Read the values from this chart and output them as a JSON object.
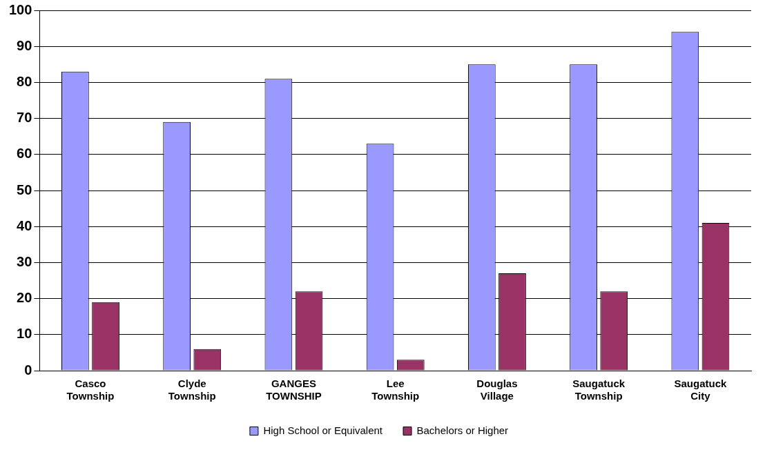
{
  "chart_data": {
    "type": "bar",
    "categories": [
      "Casco Township",
      "Clyde Township",
      "GANGES TOWNSHIP",
      "Lee Township",
      "Douglas Village",
      "Saugatuck Township",
      "Saugatuck City"
    ],
    "series": [
      {
        "name": "High School or Equivalent",
        "color": "#9999ff",
        "values": [
          83,
          69,
          81,
          63,
          85,
          85,
          94
        ]
      },
      {
        "name": "Bachelors or Higher",
        "color": "#993366",
        "values": [
          19,
          6,
          22,
          3,
          27,
          22,
          41
        ]
      }
    ],
    "ylim": [
      0,
      100
    ],
    "yticks": [
      0,
      10,
      20,
      30,
      40,
      50,
      60,
      70,
      80,
      90,
      100
    ],
    "grid": "y",
    "legend": "bottom"
  }
}
